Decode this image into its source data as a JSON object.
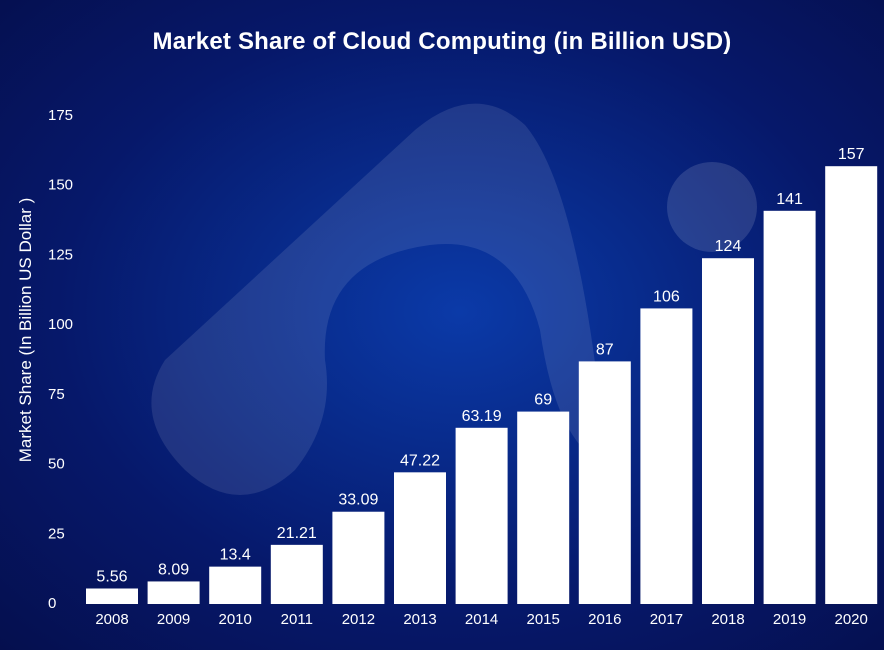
{
  "title": "Market Share of Cloud Computing (in Billion USD)",
  "colors": {
    "bar": "#ffffff",
    "text": "#ffffff",
    "background": "#06186a"
  },
  "chart_data": {
    "type": "bar",
    "title": "Market Share of Cloud Computing (in Billion USD)",
    "xlabel": "",
    "ylabel": "Market Share (In Billion US Dollar )",
    "categories": [
      "2008",
      "2009",
      "2010",
      "2011",
      "2012",
      "2013",
      "2014",
      "2015",
      "2016",
      "2017",
      "2018",
      "2019",
      "2020"
    ],
    "values": [
      5.56,
      8.09,
      13.4,
      21.21,
      33.09,
      47.22,
      63.19,
      69,
      87,
      106,
      124,
      141,
      157
    ],
    "value_labels": [
      "5.56",
      "8.09",
      "13.4",
      "21.21",
      "33.09",
      "47.22",
      "63.19",
      "69",
      "87",
      "106",
      "124",
      "141",
      "157"
    ],
    "yticks": [
      "0",
      "25",
      "50",
      "75",
      "100",
      "125",
      "150",
      "175"
    ],
    "ylim": [
      0,
      175
    ],
    "grid": false,
    "legend": "none"
  }
}
